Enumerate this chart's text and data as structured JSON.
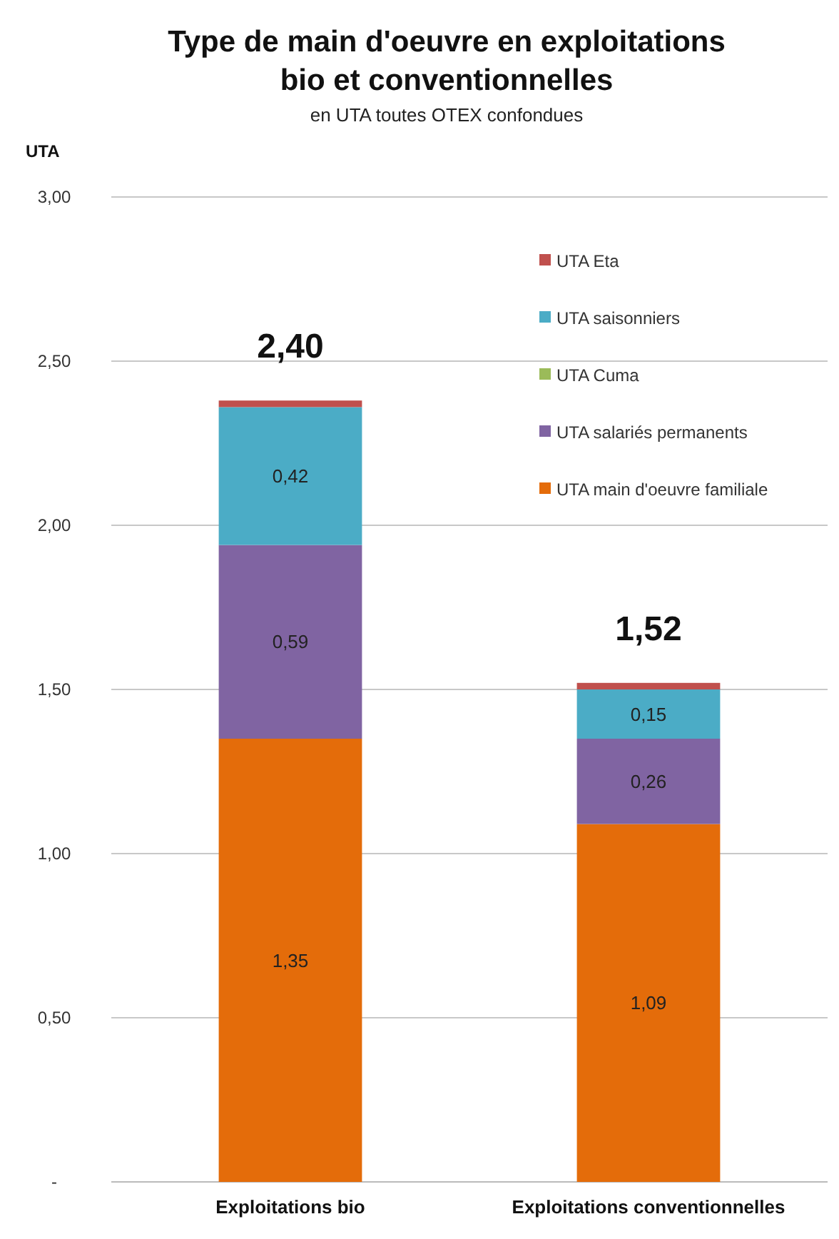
{
  "chart_data": {
    "type": "bar",
    "title": "Type de main d'oeuvre en exploitations bio et conventionnelles",
    "subtitle": "en UTA toutes OTEX confondues",
    "ylabel": "UTA",
    "categories": [
      "Exploitations bio",
      "Exploitations conventionnelles"
    ],
    "stacked": true,
    "series": [
      {
        "name": "UTA main d'oeuvre familiale",
        "color": "#e46c0a",
        "values": [
          1.35,
          1.09
        ],
        "value_labels": [
          "1,35",
          "1,09"
        ]
      },
      {
        "name": "UTA salariés permanents",
        "color": "#8064a2",
        "values": [
          0.59,
          0.26
        ],
        "value_labels": [
          "0,59",
          "0,26"
        ]
      },
      {
        "name": "UTA Cuma",
        "color": "#9bbb59",
        "values": [
          0,
          0
        ],
        "value_labels": [
          null,
          null
        ]
      },
      {
        "name": "UTA saisonniers",
        "color": "#4bacc6",
        "values": [
          0.42,
          0.15
        ],
        "value_labels": [
          "0,42",
          "0,15"
        ]
      },
      {
        "name": "UTA Eta",
        "color": "#c0504d",
        "values": [
          0.02,
          0.02
        ],
        "value_labels": [
          null,
          null
        ]
      }
    ],
    "totals": [
      "2,40",
      "1,52"
    ],
    "ylim": [
      0,
      3
    ],
    "yticks": [
      {
        "value": 0,
        "label": "-"
      },
      {
        "value": 0.5,
        "label": "0,50"
      },
      {
        "value": 1,
        "label": "1,00"
      },
      {
        "value": 1.5,
        "label": "1,50"
      },
      {
        "value": 2,
        "label": "2,00"
      },
      {
        "value": 2.5,
        "label": "2,50"
      },
      {
        "value": 3,
        "label": "3,00"
      }
    ],
    "grid": "y",
    "legend": "top right"
  }
}
